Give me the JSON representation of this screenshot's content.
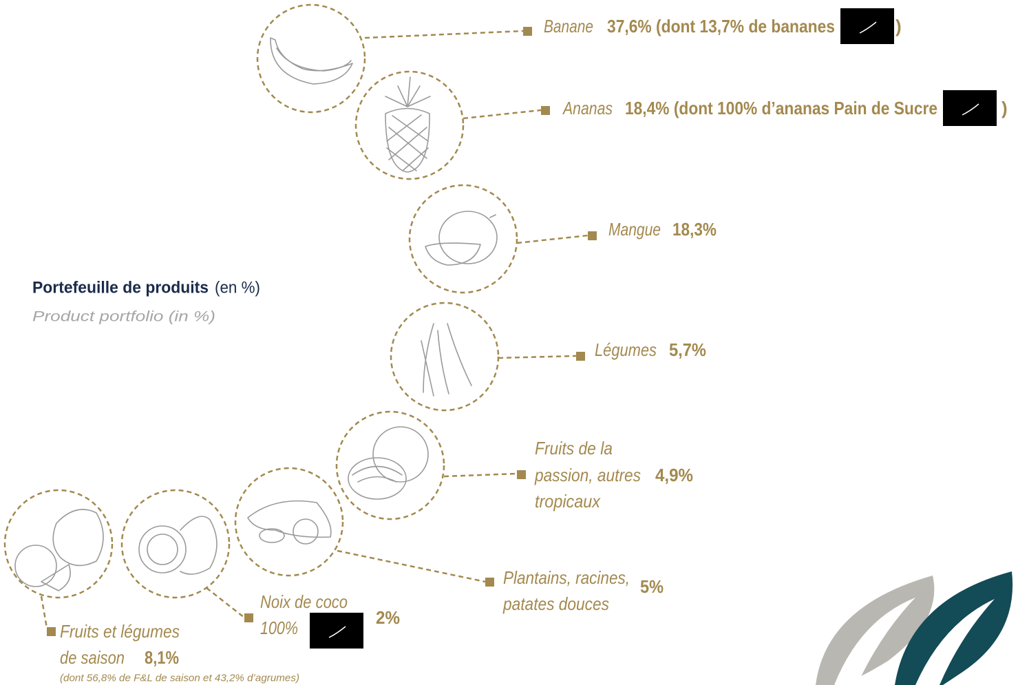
{
  "header": {
    "title": "Portefeuille de produits",
    "unit": "(en %)",
    "subtitle": "Product portfolio (in %)"
  },
  "items": [
    {
      "label": "Banane",
      "value": "37,6% (dont 13,7% de bananes",
      "close": ")"
    },
    {
      "label": "Ananas",
      "value": "18,4% (dont 100% d’ananas Pain de Sucre",
      "close": ")"
    },
    {
      "label": "Mangue",
      "value": "18,3%"
    },
    {
      "label": "Légumes",
      "value": "5,7%"
    },
    {
      "label": [
        "Fruits de la",
        "passion, autres",
        "tropicaux"
      ],
      "value": "4,9%"
    },
    {
      "label": [
        "Plantains, racines,",
        "patates douces"
      ],
      "value": "5%"
    },
    {
      "label": [
        "Noix de coco",
        "100%"
      ],
      "value": "2%"
    },
    {
      "label": [
        "Fruits et légumes",
        "de saison"
      ],
      "value": "8,1%",
      "note": "(dont 56,8% de F&L de saison et  43,2% d’agrumes)"
    }
  ]
}
